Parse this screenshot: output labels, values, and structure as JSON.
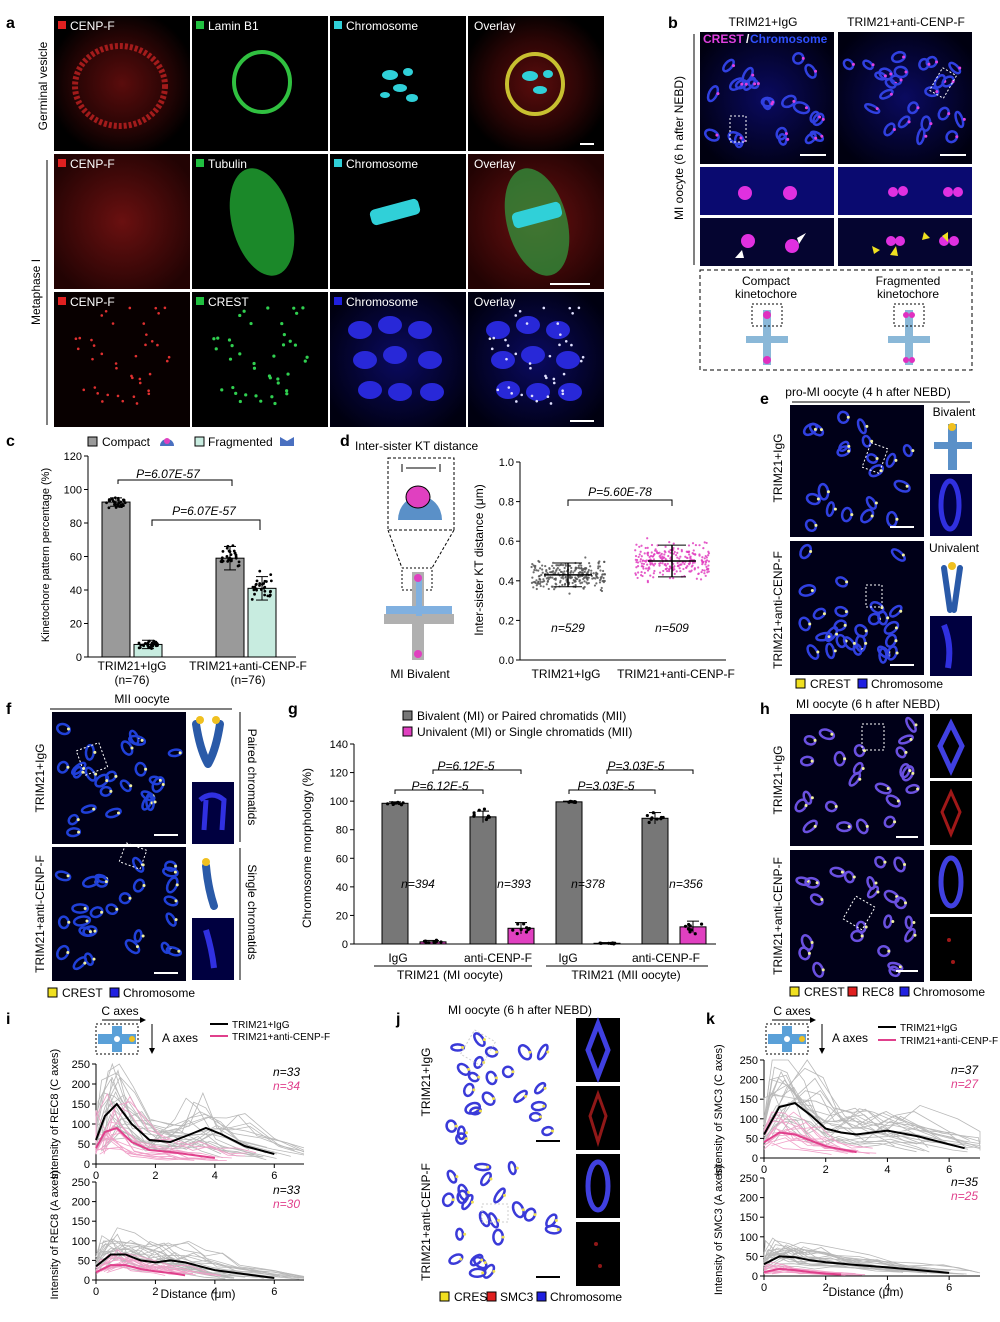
{
  "panels": {
    "a": {
      "letter": "a",
      "rows": [
        {
          "label": "Germinal vesicle",
          "cols": [
            "CENP-F",
            "Lamin B1",
            "Chromosome",
            "Overlay"
          ]
        },
        {
          "label": "",
          "cols": [
            "CENP-F",
            "Tubulin",
            "Chromosome",
            "Overlay"
          ]
        },
        {
          "label": "",
          "cols": [
            "CENP-F",
            "CREST",
            "Chromosome",
            "Overlay"
          ]
        }
      ],
      "group_label": "Metaphase I",
      "colors": {
        "cenpf": "#e02020",
        "green": "#20c040",
        "cyan": "#30d0d8",
        "blue": "#2020e0"
      }
    },
    "b": {
      "letter": "b",
      "col_titles": [
        "TRIM21+IgG",
        "TRIM21+anti-CENP-F"
      ],
      "row_label": "MI oocyte (6 h after NEBD)",
      "channel_a": "CREST",
      "channel_sep": "/",
      "channel_b": "Chromosome",
      "schemes": [
        "Compact\nkinetochore",
        "Fragmented\nkinetochore"
      ]
    },
    "c": {
      "letter": "c",
      "legend": [
        "Compact",
        "Fragmented"
      ],
      "ylabel": "Kinetochore pattern percentage (%)",
      "yticks": [
        "0",
        "20",
        "40",
        "60",
        "80",
        "100",
        "120"
      ],
      "pvals": [
        "P=6.07E-57",
        "P=6.07E-57"
      ],
      "groups": [
        "TRIM21+IgG",
        "TRIM21+anti-CENP-F"
      ],
      "ns": [
        "(n=76)",
        "(n=76)"
      ]
    },
    "d": {
      "letter": "d",
      "title": "Inter-sister KT distance",
      "scheme_label": "MI Bivalent",
      "ylabel": "Inter-sister KT distance (μm)",
      "yticks": [
        "0.0",
        "0.2",
        "0.4",
        "0.6",
        "0.8",
        "1.0"
      ],
      "pval": "P=5.60E-78",
      "groups": [
        "TRIM21+IgG",
        "TRIM21+anti-CENP-F"
      ],
      "ns": [
        "n=529",
        "n=509"
      ]
    },
    "e": {
      "letter": "e",
      "title": "pro-MI oocyte (4 h after NEBD)",
      "rows": [
        "TRIM21+IgG",
        "TRIM21+anti-CENP-F"
      ],
      "schemes": [
        "Bivalent",
        "Univalent"
      ],
      "legend": [
        "CREST",
        "Chromosome"
      ]
    },
    "f": {
      "letter": "f",
      "title": "MII oocyte",
      "rows": [
        "TRIM21+IgG",
        "TRIM21+anti-CENP-F"
      ],
      "schemes": [
        "Paired chromatids",
        "Single chromatids"
      ],
      "legend": [
        "CREST",
        "Chromosome"
      ]
    },
    "g": {
      "letter": "g",
      "legend": [
        "Bivalent (MI) or Paired chromatids (MII)",
        "Univalent (MI) or Single chromatids (MII)"
      ],
      "ylabel": "Chromosome morphology (%)",
      "yticks": [
        "0",
        "20",
        "40",
        "60",
        "80",
        "100",
        "120",
        "140"
      ],
      "pvals": [
        "P=6.12E-5",
        "P=6.12E-5",
        "P=3.03E-5",
        "P=3.03E-5"
      ],
      "cats": [
        "IgG",
        "anti-CENP-F",
        "IgG",
        "anti-CENP-F"
      ],
      "ns": [
        "n=394",
        "n=393",
        "n=378",
        "n=356"
      ],
      "groups": [
        "TRIM21 (MI oocyte)",
        "TRIM21 (MII oocyte)"
      ]
    },
    "h": {
      "letter": "h",
      "title": "MI oocyte (6 h after NEBD)",
      "rows": [
        "TRIM21+IgG",
        "TRIM21+anti-CENP-F"
      ],
      "legend": [
        "CREST",
        "REC8",
        "Chromosome"
      ]
    },
    "i": {
      "letter": "i",
      "axes_labels": [
        "C axes",
        "A axes"
      ],
      "legend": [
        "TRIM21+IgG",
        "TRIM21+anti-CENP-F"
      ],
      "ylabels": [
        "Intensity of REC8 (C axes)",
        "Intensity of REC8 (A axes)"
      ],
      "yticks": [
        "0",
        "50",
        "100",
        "150",
        "200",
        "250"
      ],
      "xticks": [
        "0",
        "2",
        "4",
        "6"
      ],
      "xlabel": "Distance (μm)",
      "ns_top": [
        "n=33",
        "n=34"
      ],
      "ns_bottom": [
        "n=33",
        "n=30"
      ]
    },
    "j": {
      "letter": "j",
      "title": "MI oocyte (6 h after NEBD)",
      "rows": [
        "TRIM21+IgG",
        "TRIM21+anti-CENP-F"
      ],
      "legend": [
        "CREST",
        "SMC3",
        "Chromosome"
      ]
    },
    "k": {
      "letter": "k",
      "axes_labels": [
        "C axes",
        "A axes"
      ],
      "legend": [
        "TRIM21+IgG",
        "TRIM21+anti-CENP-F"
      ],
      "ylabels": [
        "Intensity of SMC3 (C axes)",
        "Intensity of SMC3 (A axes)"
      ],
      "yticks": [
        "0",
        "50",
        "100",
        "150",
        "200",
        "250"
      ],
      "xticks": [
        "0",
        "2",
        "4",
        "6"
      ],
      "xlabel": "Distance (μm)",
      "ns_top": [
        "n=37",
        "n=27"
      ],
      "ns_bottom": [
        "n=35",
        "n=25"
      ]
    }
  },
  "chart_data": [
    {
      "panel": "c",
      "type": "bar",
      "categories": [
        "TRIM21+IgG",
        "TRIM21+anti-CENP-F"
      ],
      "series": [
        {
          "name": "Compact",
          "values": [
            92.5,
            59
          ],
          "sd": [
            2.5,
            7
          ],
          "color": "#9a9a9a"
        },
        {
          "name": "Fragmented",
          "values": [
            7.5,
            41
          ],
          "sd": [
            2.5,
            7
          ],
          "color": "#c8ece0"
        }
      ],
      "ylabel": "Kinetochore pattern percentage (%)",
      "ylim": [
        0,
        120
      ]
    },
    {
      "panel": "d",
      "type": "scatter",
      "categories": [
        "TRIM21+IgG",
        "TRIM21+anti-CENP-F"
      ],
      "series": [
        {
          "name": "TRIM21+IgG",
          "mean": 0.43,
          "sd": 0.06,
          "min": 0.27,
          "max": 0.64,
          "n": 529,
          "color": "#555555"
        },
        {
          "name": "TRIM21+anti-CENP-F",
          "mean": 0.5,
          "sd": 0.08,
          "min": 0.3,
          "max": 0.7,
          "n": 509,
          "color": "#e040c0"
        }
      ],
      "ylabel": "Inter-sister KT distance (μm)",
      "ylim": [
        0,
        1.0
      ]
    },
    {
      "panel": "g",
      "type": "bar",
      "categories": [
        "IgG (MI)",
        "anti-CENP-F (MI)",
        "IgG (MII)",
        "anti-CENP-F (MII)"
      ],
      "series": [
        {
          "name": "Bivalent (MI) or Paired chromatids (MII)",
          "values": [
            98.5,
            89,
            99.5,
            88
          ],
          "sd": [
            1,
            4,
            0.5,
            4
          ],
          "color": "#777777"
        },
        {
          "name": "Univalent (MI) or Single chromatids (MII)",
          "values": [
            1.5,
            11,
            0.5,
            12
          ],
          "sd": [
            1,
            4,
            0.5,
            4
          ],
          "color": "#e040c0"
        }
      ],
      "ylabel": "Chromosome morphology (%)",
      "ylim": [
        0,
        140
      ]
    },
    {
      "panel": "i-top",
      "type": "line",
      "series": [
        {
          "name": "TRIM21+IgG",
          "x": [
            0,
            0.3,
            0.7,
            1.2,
            1.8,
            2.5,
            3.2,
            3.7,
            4.2,
            5,
            6
          ],
          "values": [
            60,
            120,
            150,
            100,
            60,
            55,
            75,
            90,
            75,
            45,
            25
          ]
        },
        {
          "name": "TRIM21+anti-CENP-F",
          "x": [
            0,
            0.3,
            0.7,
            1.2,
            1.8,
            2.5,
            3,
            3.5,
            4
          ],
          "values": [
            40,
            80,
            90,
            55,
            35,
            30,
            25,
            20,
            15
          ]
        }
      ],
      "xlabel": "Distance (μm)",
      "ylabel": "Intensity of REC8 (C axes)",
      "ylim": [
        0,
        250
      ],
      "xlim": [
        0,
        7
      ]
    },
    {
      "panel": "i-bottom",
      "type": "line",
      "series": [
        {
          "name": "TRIM21+IgG",
          "x": [
            0,
            0.5,
            1,
            1.5,
            2,
            2.5,
            3,
            3.5,
            4,
            5,
            6
          ],
          "values": [
            35,
            65,
            65,
            50,
            45,
            50,
            45,
            35,
            25,
            15,
            5
          ]
        },
        {
          "name": "TRIM21+anti-CENP-F",
          "x": [
            0,
            0.5,
            1,
            1.5,
            2,
            2.5,
            3
          ],
          "values": [
            20,
            38,
            38,
            28,
            22,
            18,
            12
          ]
        }
      ],
      "xlabel": "Distance (μm)",
      "ylabel": "Intensity of REC8 (A axes)",
      "ylim": [
        0,
        250
      ],
      "xlim": [
        0,
        7
      ]
    },
    {
      "panel": "k-top",
      "type": "line",
      "series": [
        {
          "name": "TRIM21+IgG",
          "x": [
            0,
            0.5,
            1,
            1.5,
            2,
            2.5,
            3,
            3.5,
            4,
            5,
            6,
            6.5
          ],
          "values": [
            60,
            130,
            140,
            110,
            75,
            65,
            60,
            65,
            70,
            55,
            35,
            25
          ]
        },
        {
          "name": "TRIM21+anti-CENP-F",
          "x": [
            0,
            0.5,
            1,
            1.5,
            2,
            2.5,
            3
          ],
          "values": [
            40,
            65,
            60,
            45,
            30,
            22,
            15
          ]
        }
      ],
      "xlabel": "Distance (μm)",
      "ylabel": "Intensity of SMC3 (C axes)",
      "ylim": [
        0,
        250
      ],
      "xlim": [
        0,
        7
      ]
    },
    {
      "panel": "k-bottom",
      "type": "line",
      "series": [
        {
          "name": "TRIM21+IgG",
          "x": [
            0,
            0.5,
            1,
            1.5,
            2,
            3,
            4,
            5,
            6
          ],
          "values": [
            30,
            50,
            48,
            40,
            35,
            28,
            22,
            15,
            8
          ]
        },
        {
          "name": "TRIM21+anti-CENP-F",
          "x": [
            0,
            0.5,
            1,
            1.5,
            2,
            2.5
          ],
          "values": [
            10,
            18,
            15,
            10,
            6,
            4
          ]
        }
      ],
      "xlabel": "Distance (μm)",
      "ylabel": "Intensity of SMC3 (A axes)",
      "ylim": [
        0,
        250
      ],
      "xlim": [
        0,
        7
      ]
    }
  ]
}
